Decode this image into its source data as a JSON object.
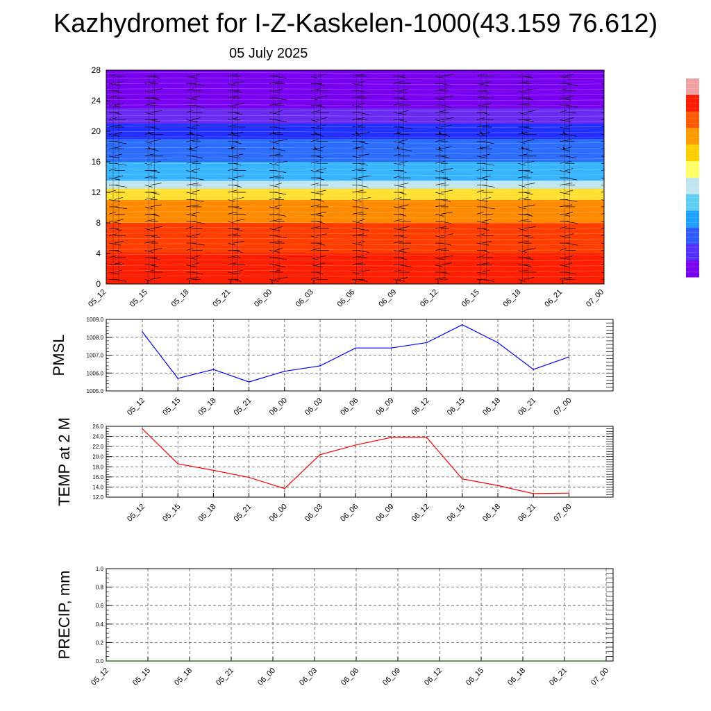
{
  "title": "Kazhydromet for I-Z-Kaskelen-1000(43.159 76.612)",
  "subtitle": "05 July 2025",
  "colors": {
    "pmsl_line": "#0000ff",
    "temp_line": "#ff0000",
    "precip_line": "#006400",
    "grid": "#555555",
    "colorbar": [
      "#7a00f2",
      "#5530ff",
      "#2f5bff",
      "#1ea0ff",
      "#60cdf2",
      "#bfe6ef",
      "#ffff66",
      "#ffd000",
      "#ff9a00",
      "#ff5a00",
      "#ff1a00",
      "#e61e1e",
      "#f0a0a0"
    ]
  },
  "chart_data": [
    {
      "type": "heatmap",
      "name": "time-height cross section",
      "yticks": [
        "0",
        "4",
        "8",
        "12",
        "16",
        "20",
        "24",
        "28"
      ],
      "ylim": [
        0,
        28
      ],
      "xticks": [
        "05_12",
        "05_15",
        "05_18",
        "05_21",
        "06_00",
        "06_03",
        "06_06",
        "06_09",
        "06_12",
        "06_15",
        "06_18",
        "06_21",
        "07_00"
      ],
      "color_bands": [
        {
          "from": 0,
          "to": 4,
          "color": "#ff1e00"
        },
        {
          "from": 4,
          "to": 8,
          "color": "#ff3d00"
        },
        {
          "from": 8,
          "to": 11,
          "color": "#ff8a00"
        },
        {
          "from": 11,
          "to": 12.5,
          "color": "#ffe030"
        },
        {
          "from": 12.5,
          "to": 13.5,
          "color": "#bfe6ef"
        },
        {
          "from": 13.5,
          "to": 16,
          "color": "#37b4ff"
        },
        {
          "from": 16,
          "to": 19,
          "color": "#2a6dff"
        },
        {
          "from": 19,
          "to": 21,
          "color": "#2230ff"
        },
        {
          "from": 21,
          "to": 23,
          "color": "#6a2af2"
        },
        {
          "from": 23,
          "to": 28,
          "color": "#7a00f2"
        }
      ],
      "wind_barbs": true
    },
    {
      "type": "line",
      "ylabel": "PMSL",
      "ylim": [
        1005.0,
        1009.0
      ],
      "yticks": [
        "1005.0",
        "1006.0",
        "1007.0",
        "1008.0",
        "1009.0"
      ],
      "categories": [
        "05_12",
        "05_15",
        "05_18",
        "05_21",
        "06_00",
        "06_03",
        "06_06",
        "06_09",
        "06_12",
        "06_15",
        "06_18",
        "06_21",
        "07_00"
      ],
      "values": [
        1008.3,
        1005.7,
        1006.2,
        1005.5,
        1006.1,
        1006.4,
        1007.4,
        1007.4,
        1007.7,
        1008.7,
        1007.7,
        1006.2,
        1006.9
      ],
      "grid": true
    },
    {
      "type": "line",
      "ylabel": "TEMP at 2 M",
      "ylim": [
        12.0,
        26.0
      ],
      "yticks": [
        "12.0",
        "14.0",
        "16.0",
        "18.0",
        "20.0",
        "22.0",
        "24.0",
        "26.0"
      ],
      "categories": [
        "05_12",
        "05_15",
        "05_18",
        "05_21",
        "06_00",
        "06_03",
        "06_06",
        "06_09",
        "06_12",
        "06_15",
        "06_18",
        "06_21",
        "07_00"
      ],
      "values": [
        25.5,
        18.6,
        17.3,
        15.9,
        13.7,
        20.4,
        22.3,
        23.8,
        23.8,
        15.6,
        14.3,
        12.7,
        12.8
      ],
      "grid": true
    },
    {
      "type": "line",
      "ylabel": "PRECIP, mm",
      "ylim": [
        0.0,
        1.0
      ],
      "yticks": [
        "0.0",
        "0.2",
        "0.4",
        "0.6",
        "0.8",
        "1.0"
      ],
      "categories": [
        "05_12",
        "05_15",
        "05_18",
        "05_21",
        "06_00",
        "06_03",
        "06_06",
        "06_09",
        "06_12",
        "06_15",
        "06_18",
        "06_21",
        "07_00"
      ],
      "values": [
        0,
        0,
        0,
        0,
        0,
        0,
        0,
        0,
        0,
        0,
        0,
        0,
        0
      ],
      "grid": true
    }
  ]
}
